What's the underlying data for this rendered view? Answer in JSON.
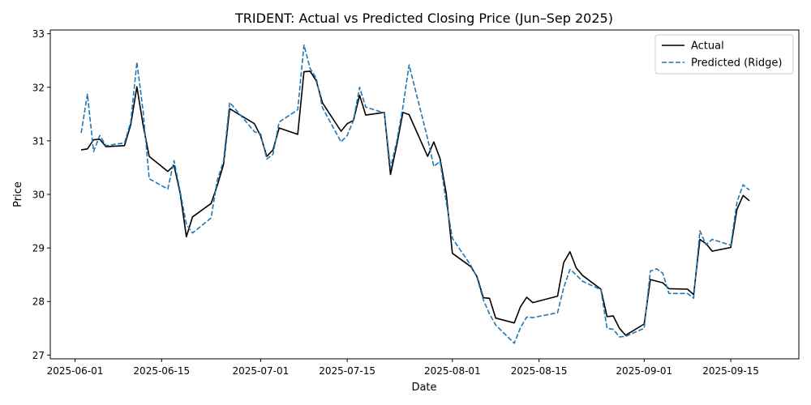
{
  "chart_data": {
    "type": "line",
    "title": "TRIDENT: Actual vs Predicted Closing Price (Jun–Sep 2025)",
    "xlabel": "Date",
    "ylabel": "Price",
    "xlim": [
      "2025-05-28",
      "2025-09-26"
    ],
    "ylim": [
      26.93,
      33.07
    ],
    "x_ticks": [
      "2025-06-01",
      "2025-06-15",
      "2025-07-01",
      "2025-07-15",
      "2025-08-01",
      "2025-08-15",
      "2025-09-01",
      "2025-09-15"
    ],
    "y_ticks": [
      27,
      28,
      29,
      30,
      31,
      32,
      33
    ],
    "grid": false,
    "legend_position": "top-right",
    "series": [
      {
        "name": "Actual",
        "color": "#000000",
        "style": "solid",
        "points": [
          [
            "2025-06-02",
            30.83
          ],
          [
            "2025-06-03",
            30.85
          ],
          [
            "2025-06-04",
            31.02
          ],
          [
            "2025-06-05",
            31.03
          ],
          [
            "2025-06-06",
            30.89
          ],
          [
            "2025-06-09",
            30.91
          ],
          [
            "2025-06-10",
            31.3
          ],
          [
            "2025-06-11",
            32.01
          ],
          [
            "2025-06-12",
            31.3
          ],
          [
            "2025-06-13",
            30.71
          ],
          [
            "2025-06-16",
            30.43
          ],
          [
            "2025-06-17",
            30.54
          ],
          [
            "2025-06-18",
            30.02
          ],
          [
            "2025-06-19",
            29.21
          ],
          [
            "2025-06-20",
            29.58
          ],
          [
            "2025-06-23",
            29.83
          ],
          [
            "2025-06-24",
            30.17
          ],
          [
            "2025-06-25",
            30.56
          ],
          [
            "2025-06-26",
            31.6
          ],
          [
            "2025-06-30",
            31.32
          ],
          [
            "2025-07-01",
            31.09
          ],
          [
            "2025-07-02",
            30.71
          ],
          [
            "2025-07-03",
            30.83
          ],
          [
            "2025-07-04",
            31.24
          ],
          [
            "2025-07-07",
            31.12
          ],
          [
            "2025-07-08",
            32.29
          ],
          [
            "2025-07-09",
            32.3
          ],
          [
            "2025-07-10",
            32.12
          ],
          [
            "2025-07-11",
            31.71
          ],
          [
            "2025-07-14",
            31.18
          ],
          [
            "2025-07-15",
            31.32
          ],
          [
            "2025-07-16",
            31.38
          ],
          [
            "2025-07-17",
            31.85
          ],
          [
            "2025-07-18",
            31.48
          ],
          [
            "2025-07-21",
            31.53
          ],
          [
            "2025-07-22",
            30.37
          ],
          [
            "2025-07-23",
            30.92
          ],
          [
            "2025-07-24",
            31.53
          ],
          [
            "2025-07-25",
            31.49
          ],
          [
            "2025-07-28",
            30.71
          ],
          [
            "2025-07-29",
            30.98
          ],
          [
            "2025-07-30",
            30.67
          ],
          [
            "2025-07-31",
            30.02
          ],
          [
            "2025-08-01",
            28.9
          ],
          [
            "2025-08-04",
            28.65
          ],
          [
            "2025-08-05",
            28.46
          ],
          [
            "2025-08-06",
            28.07
          ],
          [
            "2025-08-07",
            28.06
          ],
          [
            "2025-08-08",
            27.69
          ],
          [
            "2025-08-11",
            27.6
          ],
          [
            "2025-08-12",
            27.9
          ],
          [
            "2025-08-13",
            28.08
          ],
          [
            "2025-08-14",
            27.98
          ],
          [
            "2025-08-18",
            28.1
          ],
          [
            "2025-08-19",
            28.73
          ],
          [
            "2025-08-20",
            28.93
          ],
          [
            "2025-08-21",
            28.63
          ],
          [
            "2025-08-22",
            28.49
          ],
          [
            "2025-08-25",
            28.23
          ],
          [
            "2025-08-26",
            27.72
          ],
          [
            "2025-08-27",
            27.73
          ],
          [
            "2025-08-28",
            27.5
          ],
          [
            "2025-08-29",
            27.37
          ],
          [
            "2025-09-01",
            27.58
          ],
          [
            "2025-09-02",
            28.41
          ],
          [
            "2025-09-03",
            28.38
          ],
          [
            "2025-09-04",
            28.35
          ],
          [
            "2025-09-05",
            28.24
          ],
          [
            "2025-09-08",
            28.23
          ],
          [
            "2025-09-09",
            28.13
          ],
          [
            "2025-09-10",
            29.16
          ],
          [
            "2025-09-11",
            29.08
          ],
          [
            "2025-09-12",
            28.94
          ],
          [
            "2025-09-15",
            29.01
          ],
          [
            "2025-09-16",
            29.72
          ],
          [
            "2025-09-17",
            29.98
          ],
          [
            "2025-09-18",
            29.88
          ]
        ]
      },
      {
        "name": "Predicted (Ridge)",
        "color": "#1f77b4",
        "style": "dashed",
        "points": [
          [
            "2025-06-02",
            31.15
          ],
          [
            "2025-06-03",
            31.87
          ],
          [
            "2025-06-04",
            30.8
          ],
          [
            "2025-06-05",
            31.1
          ],
          [
            "2025-06-06",
            30.91
          ],
          [
            "2025-06-09",
            30.96
          ],
          [
            "2025-06-10",
            31.35
          ],
          [
            "2025-06-11",
            32.47
          ],
          [
            "2025-06-12",
            31.56
          ],
          [
            "2025-06-13",
            30.29
          ],
          [
            "2025-06-16",
            30.1
          ],
          [
            "2025-06-17",
            30.63
          ],
          [
            "2025-06-18",
            30.05
          ],
          [
            "2025-06-19",
            29.44
          ],
          [
            "2025-06-20",
            29.28
          ],
          [
            "2025-06-23",
            29.56
          ],
          [
            "2025-06-24",
            30.27
          ],
          [
            "2025-06-25",
            30.62
          ],
          [
            "2025-06-26",
            31.72
          ],
          [
            "2025-06-30",
            31.17
          ],
          [
            "2025-07-01",
            31.13
          ],
          [
            "2025-07-02",
            30.66
          ],
          [
            "2025-07-03",
            30.75
          ],
          [
            "2025-07-04",
            31.35
          ],
          [
            "2025-07-07",
            31.58
          ],
          [
            "2025-07-08",
            32.79
          ],
          [
            "2025-07-09",
            32.35
          ],
          [
            "2025-07-10",
            32.17
          ],
          [
            "2025-07-11",
            31.62
          ],
          [
            "2025-07-14",
            30.98
          ],
          [
            "2025-07-15",
            31.1
          ],
          [
            "2025-07-16",
            31.38
          ],
          [
            "2025-07-17",
            32.0
          ],
          [
            "2025-07-18",
            31.63
          ],
          [
            "2025-07-21",
            31.52
          ],
          [
            "2025-07-22",
            30.49
          ],
          [
            "2025-07-23",
            30.99
          ],
          [
            "2025-07-24",
            31.63
          ],
          [
            "2025-07-25",
            32.42
          ],
          [
            "2025-07-28",
            31.04
          ],
          [
            "2025-07-29",
            30.52
          ],
          [
            "2025-07-30",
            30.62
          ],
          [
            "2025-07-31",
            29.86
          ],
          [
            "2025-08-01",
            29.18
          ],
          [
            "2025-08-04",
            28.67
          ],
          [
            "2025-08-05",
            28.44
          ],
          [
            "2025-08-06",
            28.03
          ],
          [
            "2025-08-07",
            27.77
          ],
          [
            "2025-08-08",
            27.56
          ],
          [
            "2025-08-11",
            27.22
          ],
          [
            "2025-08-12",
            27.51
          ],
          [
            "2025-08-13",
            27.71
          ],
          [
            "2025-08-14",
            27.7
          ],
          [
            "2025-08-18",
            27.79
          ],
          [
            "2025-08-19",
            28.26
          ],
          [
            "2025-08-20",
            28.6
          ],
          [
            "2025-08-21",
            28.5
          ],
          [
            "2025-08-22",
            28.38
          ],
          [
            "2025-08-25",
            28.22
          ],
          [
            "2025-08-26",
            27.5
          ],
          [
            "2025-08-27",
            27.48
          ],
          [
            "2025-08-28",
            27.34
          ],
          [
            "2025-08-29",
            27.35
          ],
          [
            "2025-09-01",
            27.5
          ],
          [
            "2025-09-02",
            28.57
          ],
          [
            "2025-09-03",
            28.61
          ],
          [
            "2025-09-04",
            28.53
          ],
          [
            "2025-09-05",
            28.15
          ],
          [
            "2025-09-08",
            28.15
          ],
          [
            "2025-09-09",
            28.06
          ],
          [
            "2025-09-10",
            29.32
          ],
          [
            "2025-09-11",
            29.06
          ],
          [
            "2025-09-12",
            29.16
          ],
          [
            "2025-09-15",
            29.05
          ],
          [
            "2025-09-16",
            29.86
          ],
          [
            "2025-09-17",
            30.18
          ],
          [
            "2025-09-18",
            30.08
          ]
        ]
      }
    ]
  }
}
